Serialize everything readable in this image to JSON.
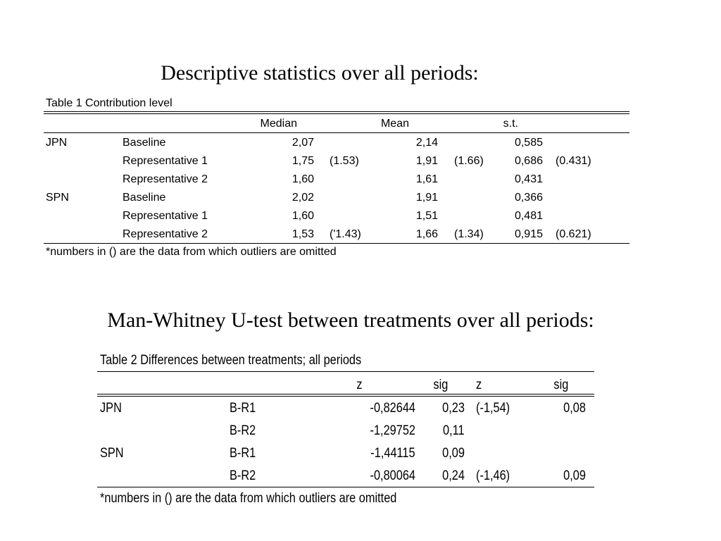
{
  "heading1": "Descriptive statistics over all periods:",
  "table1": {
    "caption": "Table 1 Contribution level",
    "headers": {
      "median": "Median",
      "mean": "Mean",
      "st": "s.t."
    },
    "rows": [
      {
        "group": "JPN",
        "treatment": "Baseline",
        "median": "2,07",
        "median_alt": "",
        "mean": "2,14",
        "mean_alt": "",
        "st": "0,585",
        "st_alt": ""
      },
      {
        "group": "",
        "treatment": "Representative 1",
        "median": "1,75",
        "median_alt": "(1.53)",
        "mean": "1,91",
        "mean_alt": "(1.66)",
        "st": "0,686",
        "st_alt": "(0.431)"
      },
      {
        "group": "",
        "treatment": "Representative 2",
        "median": "1,60",
        "median_alt": "",
        "mean": "1,61",
        "mean_alt": "",
        "st": "0,431",
        "st_alt": ""
      },
      {
        "group": "SPN",
        "treatment": "Baseline",
        "median": "2,02",
        "median_alt": "",
        "mean": "1,91",
        "mean_alt": "",
        "st": "0,366",
        "st_alt": ""
      },
      {
        "group": "",
        "treatment": "Representative 1",
        "median": "1,60",
        "median_alt": "",
        "mean": "1,51",
        "mean_alt": "",
        "st": "0,481",
        "st_alt": ""
      },
      {
        "group": "",
        "treatment": "Representative 2",
        "median": "1,53",
        "median_alt": "('1.43)",
        "mean": "1,66",
        "mean_alt": "(1.34)",
        "st": "0,915",
        "st_alt": "(0.621)"
      }
    ],
    "note": "*numbers in () are the data from which outliers are omitted"
  },
  "heading2": "Man-Whitney U-test between treatments over all periods:",
  "table2": {
    "caption": "Table 2 Differences between treatments; all periods",
    "headers": {
      "z": "z",
      "sig": "sig",
      "z2": "z",
      "sig2": "sig"
    },
    "rows": [
      {
        "group": "JPN",
        "pair": "B-R1",
        "z": "-0,82644",
        "sig": "0,23",
        "z2": "(-1,54)",
        "sig2": "0,08"
      },
      {
        "group": "",
        "pair": "B-R2",
        "z": "-1,29752",
        "sig": "0,11",
        "z2": "",
        "sig2": ""
      },
      {
        "group": "SPN",
        "pair": "B-R1",
        "z": "-1,44115",
        "sig": "0,09",
        "z2": "",
        "sig2": ""
      },
      {
        "group": "",
        "pair": "B-R2",
        "z": "-0,80064",
        "sig": "0,24",
        "z2": "(-1,46)",
        "sig2": "0,09"
      }
    ],
    "note": "*numbers in () are the data from which outliers are omitted"
  }
}
